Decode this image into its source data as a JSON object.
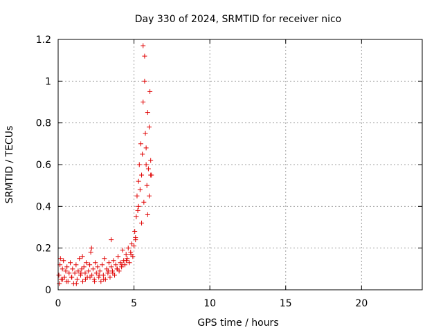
{
  "chart_data": {
    "type": "scatter",
    "title": "Day 330 of 2024, SRMTID for receiver nico",
    "xlabel": "GPS time / hours",
    "ylabel": "SRMTID / TECUs",
    "xlim": [
      0,
      24
    ],
    "ylim": [
      0,
      1.2
    ],
    "x_ticks": [
      0,
      5,
      10,
      15,
      20
    ],
    "x_tick_labels": [
      "0",
      "5",
      "10",
      "15",
      "20"
    ],
    "y_ticks": [
      0,
      0.2,
      0.4,
      0.6,
      0.8,
      1.0,
      1.2
    ],
    "y_tick_labels": [
      "0",
      "0.2",
      "0.4",
      "0.6",
      "0.8",
      "1",
      "1.2"
    ],
    "grid": true,
    "marker": "plus",
    "point_color": "#e00000",
    "series": [
      {
        "name": "SRMTID",
        "x": [
          0.05,
          0.12,
          0.2,
          0.28,
          0.35,
          0.42,
          0.5,
          0.58,
          0.65,
          0.72,
          0.8,
          0.88,
          0.95,
          1.02,
          1.1,
          1.18,
          1.25,
          1.32,
          1.4,
          1.48,
          1.55,
          1.62,
          1.7,
          1.78,
          1.85,
          1.92,
          2.0,
          2.08,
          2.15,
          2.22,
          2.3,
          2.38,
          2.45,
          2.52,
          2.6,
          2.68,
          2.75,
          2.82,
          2.9,
          2.98,
          3.05,
          3.12,
          3.2,
          3.28,
          3.35,
          3.42,
          3.5,
          3.58,
          3.65,
          3.72,
          3.8,
          3.88,
          3.95,
          4.02,
          4.1,
          4.18,
          4.25,
          4.32,
          4.4,
          4.48,
          4.55,
          4.62,
          4.7,
          4.78,
          4.85,
          4.92,
          5.0,
          5.05,
          5.1,
          5.15,
          5.2,
          5.25,
          5.3,
          5.35,
          5.4,
          5.45,
          5.5,
          5.55,
          5.6,
          5.65,
          5.7,
          5.75,
          5.8,
          5.85,
          5.9,
          5.95,
          6.0,
          6.05,
          6.1,
          6.15,
          0.08,
          0.3,
          0.55,
          0.9,
          1.2,
          1.5,
          1.8,
          2.1,
          2.4,
          2.7,
          3.0,
          3.3,
          3.6,
          3.9,
          4.2,
          4.5,
          4.8,
          5.1,
          5.3,
          5.5,
          5.6,
          5.7,
          5.8,
          5.9,
          6.0,
          6.1,
          3.5,
          2.2,
          1.6,
          0.15
        ],
        "y": [
          0.07,
          0.12,
          0.05,
          0.1,
          0.14,
          0.06,
          0.09,
          0.11,
          0.04,
          0.08,
          0.13,
          0.06,
          0.1,
          0.03,
          0.08,
          0.12,
          0.05,
          0.09,
          0.15,
          0.07,
          0.1,
          0.04,
          0.11,
          0.08,
          0.13,
          0.06,
          0.09,
          0.12,
          0.18,
          0.07,
          0.1,
          0.05,
          0.13,
          0.08,
          0.11,
          0.06,
          0.09,
          0.04,
          0.12,
          0.07,
          0.15,
          0.05,
          0.1,
          0.08,
          0.13,
          0.06,
          0.11,
          0.09,
          0.14,
          0.07,
          0.12,
          0.1,
          0.16,
          0.09,
          0.13,
          0.11,
          0.19,
          0.14,
          0.12,
          0.17,
          0.15,
          0.2,
          0.13,
          0.18,
          0.22,
          0.16,
          0.21,
          0.28,
          0.25,
          0.35,
          0.45,
          0.38,
          0.52,
          0.6,
          0.48,
          0.7,
          0.55,
          0.65,
          0.9,
          0.42,
          1.0,
          0.75,
          0.6,
          0.5,
          0.85,
          0.58,
          0.78,
          0.95,
          0.62,
          0.55,
          0.03,
          0.05,
          0.04,
          0.06,
          0.03,
          0.08,
          0.05,
          0.06,
          0.04,
          0.07,
          0.05,
          0.09,
          0.08,
          0.1,
          0.12,
          0.14,
          0.17,
          0.24,
          0.4,
          0.32,
          1.17,
          1.12,
          0.68,
          0.36,
          0.45,
          0.55,
          0.24,
          0.2,
          0.16,
          0.15
        ]
      }
    ]
  }
}
